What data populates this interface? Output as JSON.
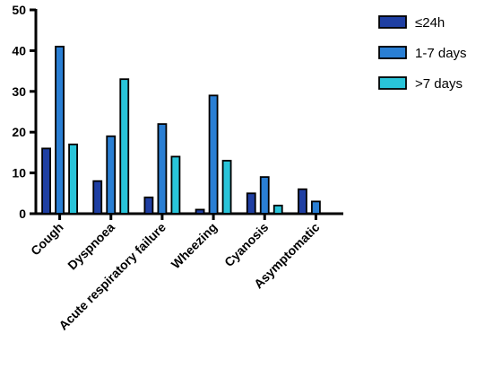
{
  "chart_data": {
    "type": "bar",
    "categories": [
      "Cough",
      "Dyspnoea",
      "Acute respiratory failure",
      "Wheezing",
      "Cyanosis",
      "Asymptomatic"
    ],
    "series": [
      {
        "name": "≤24h",
        "values": [
          16,
          8,
          4,
          1,
          5,
          6
        ],
        "color": "#1f3fa3"
      },
      {
        "name": "1-7 days",
        "values": [
          41,
          19,
          22,
          29,
          9,
          3
        ],
        "color": "#2a7fd4"
      },
      {
        "name": ">7 days",
        "values": [
          17,
          33,
          14,
          13,
          2,
          0
        ],
        "color": "#29c4d9"
      }
    ],
    "yticks": [
      "0",
      "10",
      "20",
      "30",
      "40",
      "50"
    ],
    "ylim": [
      0,
      50
    ],
    "legend_position": "top-right",
    "grid": false
  }
}
